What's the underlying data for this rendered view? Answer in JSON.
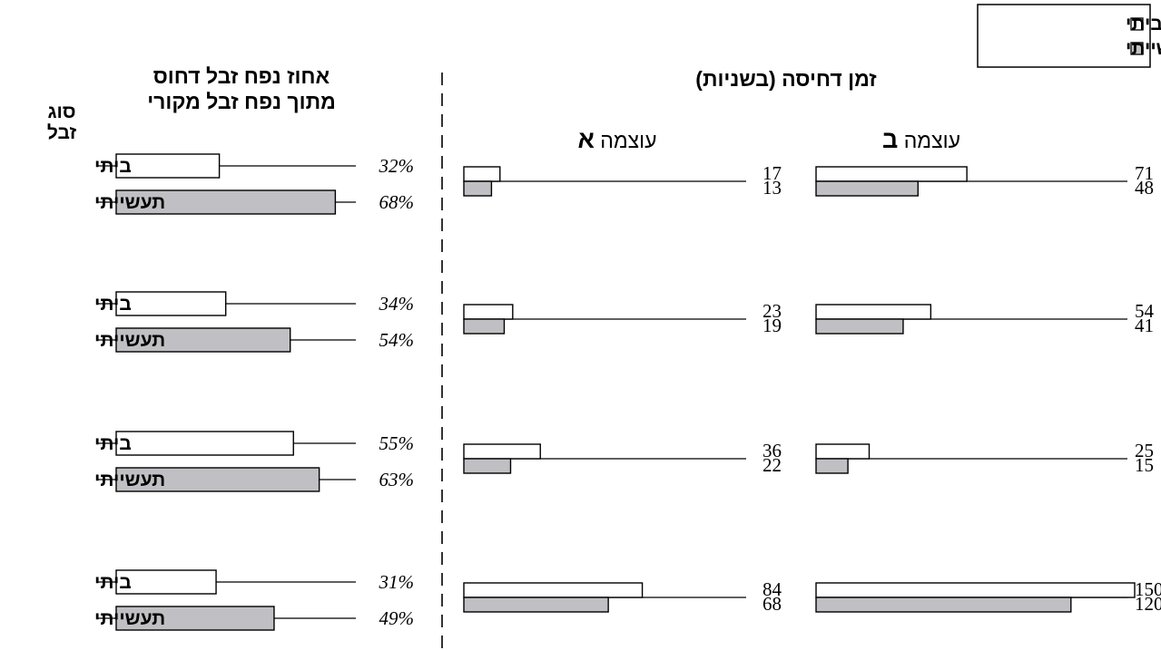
{
  "legend": {
    "items": [
      {
        "label": "זבל ביתי",
        "color": "#ffffff"
      },
      {
        "label": "זבל תעשייתי",
        "color": "#c0c0c4"
      }
    ]
  },
  "left_panel": {
    "title_line1": "אחוז נפח זבל דחוס",
    "title_line2": "מתוך נפח זבל מקורי",
    "type_header_line1": "סוג",
    "type_header_line2": "זבל"
  },
  "right_panel": {
    "title": "זמן דחיסה (בשניות)",
    "power_b_prefix": "עוצמה",
    "power_b_letter": "ב",
    "power_a_prefix": "עוצמה",
    "power_a_letter": "א"
  },
  "chart_data": [
    {
      "type": "bar",
      "title": "אחוז נפח זבל דחוס מתוך נפח זבל מקורי",
      "unit": "%",
      "categories": [
        "ביתי",
        "תעשייתי"
      ],
      "groups": [
        {
          "series": [
            {
              "name": "זבל ביתי",
              "value": 32
            },
            {
              "name": "זבל תעשייתי",
              "value": 68
            }
          ]
        },
        {
          "series": [
            {
              "name": "זבל ביתי",
              "value": 34
            },
            {
              "name": "זבל תעשייתי",
              "value": 54
            }
          ]
        },
        {
          "series": [
            {
              "name": "זבל ביתי",
              "value": 55
            },
            {
              "name": "זבל תעשייתי",
              "value": 63
            }
          ]
        },
        {
          "series": [
            {
              "name": "זבל ביתי",
              "value": 31
            },
            {
              "name": "זבל תעשייתי",
              "value": 49
            }
          ]
        }
      ]
    },
    {
      "type": "bar",
      "title": "זמן דחיסה (בשניות)",
      "panels": [
        {
          "name": "עוצמה ב",
          "groups": [
            {
              "series": [
                {
                  "name": "זבל ביתי",
                  "value": 71
                },
                {
                  "name": "זבל תעשייתי",
                  "value": 48
                }
              ]
            },
            {
              "series": [
                {
                  "name": "זבל ביתי",
                  "value": 54
                },
                {
                  "name": "זבל תעשייתי",
                  "value": 41
                }
              ]
            },
            {
              "series": [
                {
                  "name": "זבל ביתי",
                  "value": 25
                },
                {
                  "name": "זבל תעשייתי",
                  "value": 15
                }
              ]
            },
            {
              "series": [
                {
                  "name": "זבל ביתי",
                  "value": 150
                },
                {
                  "name": "זבל תעשייתי",
                  "value": 120
                }
              ]
            }
          ]
        },
        {
          "name": "עוצמה א",
          "groups": [
            {
              "series": [
                {
                  "name": "זבל ביתי",
                  "value": 17
                },
                {
                  "name": "זבל תעשייתי",
                  "value": 13
                }
              ]
            },
            {
              "series": [
                {
                  "name": "זבל ביתי",
                  "value": 23
                },
                {
                  "name": "זבל תעשייתי",
                  "value": 19
                }
              ]
            },
            {
              "series": [
                {
                  "name": "זבל ביתי",
                  "value": 36
                },
                {
                  "name": "זבל תעשייתי",
                  "value": 22
                }
              ]
            },
            {
              "series": [
                {
                  "name": "זבל ביתי",
                  "value": 84
                },
                {
                  "name": "זבל תעשייתי",
                  "value": 68
                }
              ]
            }
          ]
        }
      ]
    }
  ]
}
